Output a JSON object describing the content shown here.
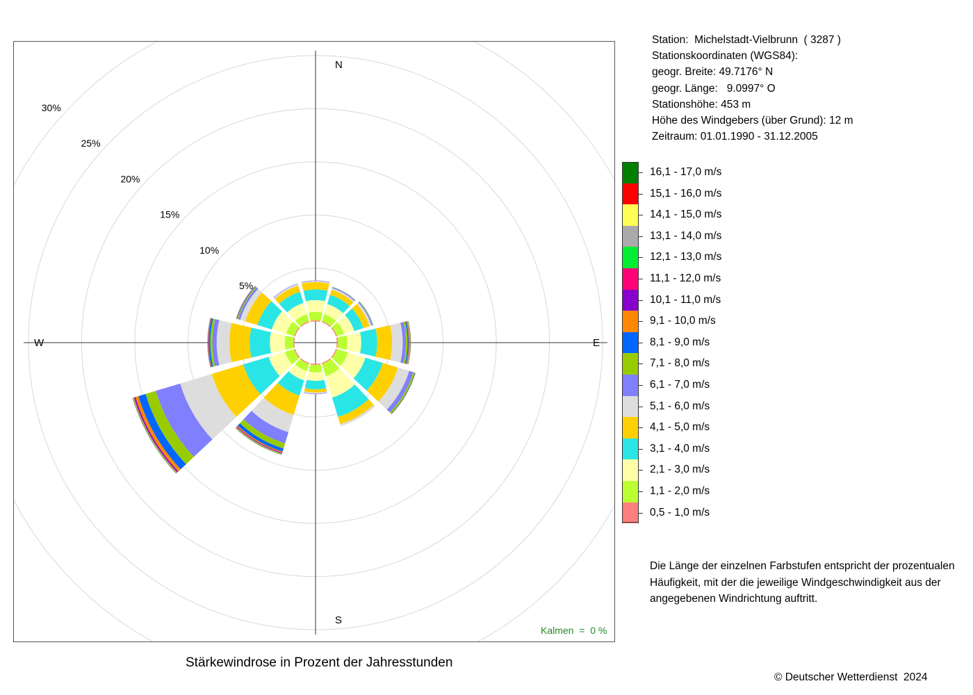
{
  "chart_data": {
    "type": "polar-stacked-bar",
    "title": "Stärkewindrose in Prozent der Jahresstunden",
    "directions": [
      "N",
      "30°",
      "60°",
      "E",
      "120°",
      "150°",
      "S",
      "210°",
      "240°",
      "W",
      "300°",
      "330°"
    ],
    "direction_labels": {
      "N": "N",
      "E": "E",
      "S": "S",
      "W": "W"
    },
    "radial_ticks": [
      "5%",
      "10%",
      "15%",
      "20%",
      "25%",
      "30%"
    ],
    "radial_tick_values": [
      5,
      10,
      15,
      20,
      25,
      30
    ],
    "inner_offset": 2,
    "classes": [
      {
        "label": "0,5 - 1,0 m/s",
        "color": "#FF7F7F"
      },
      {
        "label": "1,1 - 2,0 m/s",
        "color": "#BBFF33"
      },
      {
        "label": "2,1 - 3,0 m/s",
        "color": "#FFFFAA"
      },
      {
        "label": "3,1 - 4,0 m/s",
        "color": "#2AE5E5"
      },
      {
        "label": "4,1 - 5,0 m/s",
        "color": "#FFD000"
      },
      {
        "label": "5,1 - 6,0 m/s",
        "color": "#DDDDDD"
      },
      {
        "label": "6,1 - 7,0 m/s",
        "color": "#8080FF"
      },
      {
        "label": "7,1 - 8,0 m/s",
        "color": "#99CC00"
      },
      {
        "label": "8,1 - 9,0 m/s",
        "color": "#0066FF"
      },
      {
        "label": "9,1 - 10,0 m/s",
        "color": "#FF8800"
      },
      {
        "label": "10,1 - 11,0 m/s",
        "color": "#8800CC"
      },
      {
        "label": "11,1 - 12,0 m/s",
        "color": "#FF0077"
      },
      {
        "label": "12,1 - 13,0 m/s",
        "color": "#00EE33"
      },
      {
        "label": "13,1 - 14,0 m/s",
        "color": "#AAAAAA"
      },
      {
        "label": "14,1 - 15,0 m/s",
        "color": "#FFFF55"
      },
      {
        "label": "15,1 - 16,0 m/s",
        "color": "#FF0000"
      },
      {
        "label": "16,1 - 17,0 m/s",
        "color": "#008000"
      }
    ],
    "series": [
      {
        "direction": "N",
        "values": [
          0.1,
          0.8,
          1.1,
          1.0,
          0.7,
          0.1,
          0.05
        ]
      },
      {
        "direction": "30°",
        "values": [
          0.1,
          0.7,
          1.0,
          0.9,
          0.5,
          0.15,
          0.08,
          0.03,
          0.02
        ]
      },
      {
        "direction": "60°",
        "values": [
          0.1,
          0.7,
          1.0,
          0.9,
          0.6,
          0.2,
          0.08,
          0.05,
          0.03
        ]
      },
      {
        "direction": "E",
        "values": [
          0.1,
          0.9,
          1.3,
          1.5,
          1.4,
          1.0,
          0.3,
          0.15,
          0.1,
          0.05,
          0.03,
          0.02,
          0.02,
          0.02,
          0.02,
          0.02,
          0.03
        ]
      },
      {
        "direction": "120°",
        "values": [
          0.1,
          1.1,
          1.7,
          1.7,
          1.5,
          1.1,
          0.4,
          0.15,
          0.05,
          0.03
        ]
      },
      {
        "direction": "150°",
        "values": [
          0.1,
          1.2,
          2.1,
          1.9,
          0.7,
          0.2
        ]
      },
      {
        "direction": "S",
        "values": [
          0.1,
          0.7,
          0.8,
          0.8,
          0.3,
          0.1,
          0.05
        ]
      },
      {
        "direction": "210°",
        "values": [
          0.1,
          0.7,
          0.9,
          1.5,
          1.9,
          1.7,
          1.1,
          0.5,
          0.3,
          0.1,
          0.05,
          0.04,
          0.04,
          0.02,
          0.02,
          0.02,
          0.03
        ]
      },
      {
        "direction": "240°",
        "values": [
          0.1,
          0.9,
          1.6,
          2.5,
          3.1,
          3.1,
          2.4,
          1.0,
          0.7,
          0.3,
          0.1,
          0.05,
          0.04,
          0.02,
          0.02,
          0.02,
          0.03
        ]
      },
      {
        "direction": "W",
        "values": [
          0.1,
          0.8,
          1.4,
          1.9,
          1.9,
          1.2,
          0.4,
          0.2,
          0.15,
          0.05,
          0.03,
          0.02,
          0.02
        ]
      },
      {
        "direction": "300°",
        "values": [
          0.1,
          0.8,
          1.4,
          1.4,
          1.2,
          0.5,
          0.2,
          0.1,
          0.05,
          0.03,
          0.02
        ]
      },
      {
        "direction": "330°",
        "values": [
          0.1,
          0.7,
          1.1,
          1.1,
          0.6,
          0.15,
          0.05
        ]
      }
    ],
    "calm_label": "Kalmen  =  0 %"
  },
  "info": {
    "station": "Station:  Michelstadt-Vielbrunn  ( 3287 )",
    "coords_title": "Stationskoordinaten (WGS84):",
    "lat": "geogr. Breite: 49.7176° N",
    "lon": "geogr. Länge:   9.0997° O",
    "height": "Stationshöhe: 453 m",
    "sensor": "Höhe des Windgebers (über Grund): 12 m",
    "period": "Zeitraum: 01.01.1990 - 31.12.2005"
  },
  "note": "Die Länge der einzelnen Farbstufen entspricht der prozentualen Häufigkeit, mit der die jeweilige Windgeschwindigkeit aus der angegebenen Windrichtung auftritt.",
  "copyright": "© Deutscher Wetterdienst  2024"
}
